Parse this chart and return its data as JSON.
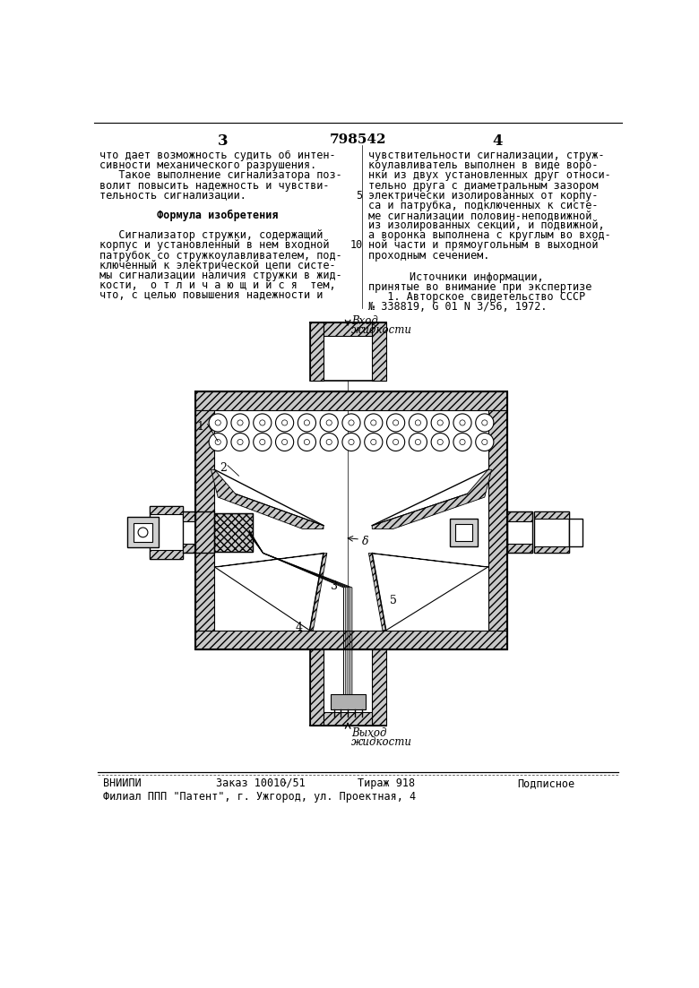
{
  "bg_color": "#ffffff",
  "page_number_left": "3",
  "page_number_center": "798542",
  "page_number_right": "4",
  "text_left_col": [
    "что дает возможность судить об интен-",
    "сивности механического разрушения.",
    "   Такое выполнение сигнализатора поз-",
    "волит повысить надежность и чувстви-",
    "тельность сигнализации.",
    "",
    "         Формула изобретения",
    "",
    "   Сигнализатор стружки, содержащий",
    "корпус и установленный в нем входной",
    "патрубок со стружкоулавливателем, под-",
    "ключенный к электрической цепи систе-",
    "мы сигнализации наличия стружки в жид-",
    "кости,  о т л и ч а ю щ и й с я  тем,",
    "что, с целью повышения надежности и"
  ],
  "text_right_col": [
    "чувствительности сигнализации, струж-",
    "коулавливатель выполнен в виде воро-",
    "нки из двух установленных друг относи-",
    "тельно друга с диаметральным зазором",
    "электрически изолированных от корпу-",
    "са и патрубка, подключенных к систе-",
    "ме сигнализации половин-неподвижной",
    "из изолированных секций, и подвижной,",
    "а воронка выполнена с круглым во вход-",
    "ной части и прямоугольным в выходной",
    "проходным сечением."
  ],
  "line_number_5": "5",
  "line_number_10": "10",
  "vhod_label": "Вход",
  "vhod_label2": "жидкости",
  "vyhod_label": "Выход",
  "vyhod_label2": "жидкости",
  "sources_title": "Источники информации,",
  "sources_line2": "принятые во внимание при экспертизе",
  "sources_line3": "   1. Авторское свидетельство СССР",
  "sources_line4": "№ 338819, G 01 N 3/56, 1972.",
  "footer_left": "ВНИИПИ",
  "footer_order": "Заказ 10010/51",
  "footer_sep": "·",
  "footer_tirazh": "Тираж 918",
  "footer_right": "Подписное",
  "footer_address": "Филиал ППП \"Патент\", г. Ужгород, ул. Проектная, 4"
}
